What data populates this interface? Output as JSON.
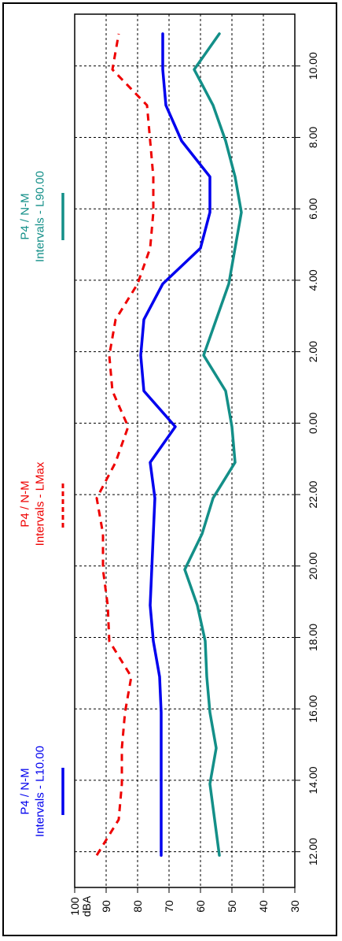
{
  "chart_data": {
    "type": "line",
    "orientation": "rotated-90",
    "x_tick_labels": [
      "12.00",
      "14.00",
      "16.00",
      "18.00",
      "20.00",
      "22.00",
      "0.00",
      "2.00",
      "4.00",
      "6.00",
      "8.00",
      "10.00"
    ],
    "x_hours_elapsed": [
      0.9,
      1.9,
      2.9,
      3.9,
      4.9,
      5.9,
      6.9,
      7.9,
      8.9,
      9.9,
      10.9,
      11.9,
      12.9,
      13.9,
      14.9,
      15.9,
      16.9,
      17.9,
      18.9,
      19.9,
      20.9,
      21.9,
      22.9,
      23.9
    ],
    "yunit": "dBA",
    "ylim": [
      30,
      100
    ],
    "y_ticks": [
      30,
      40,
      50,
      60,
      70,
      80,
      90,
      100
    ],
    "grid": true,
    "series": [
      {
        "name": "P4 / N-M Intervals - L10.00",
        "color": "#0000ee",
        "style": "solid",
        "values": [
          72.5,
          72.5,
          72.5,
          72.5,
          72.5,
          73,
          75,
          76,
          75.5,
          75,
          74.5,
          76,
          68,
          78,
          79,
          78,
          72,
          60,
          57,
          57,
          66,
          71,
          72,
          72
        ]
      },
      {
        "name": "P4 / N-M Intervals - LMax",
        "color": "#ee0000",
        "style": "dashed",
        "values": [
          93,
          86,
          85,
          85,
          84,
          82,
          89,
          89.5,
          91,
          91,
          93,
          87,
          83,
          88,
          89,
          87,
          80,
          76,
          75,
          75,
          76,
          77,
          88,
          86
        ]
      },
      {
        "name": "P4 / N-M Intervals - L90.00",
        "color": "#138f88",
        "style": "solid",
        "values": [
          54,
          55.5,
          57,
          55,
          57,
          58,
          58.5,
          61,
          65,
          59.5,
          56,
          49,
          50,
          52,
          59,
          55,
          51,
          49,
          47,
          49,
          52,
          56,
          62,
          54
        ]
      }
    ]
  },
  "legend": [
    {
      "line1": "P4 / N-M",
      "line2": "Intervals - L10.00",
      "color": "#0000ee",
      "style": "solid"
    },
    {
      "line1": "P4 / N-M",
      "line2": "Intervals - LMax",
      "color": "#ee0000",
      "style": "dashed"
    },
    {
      "line1": "P4 / N-M",
      "line2": "Intervals - L90.00",
      "color": "#138f88",
      "style": "solid"
    }
  ]
}
